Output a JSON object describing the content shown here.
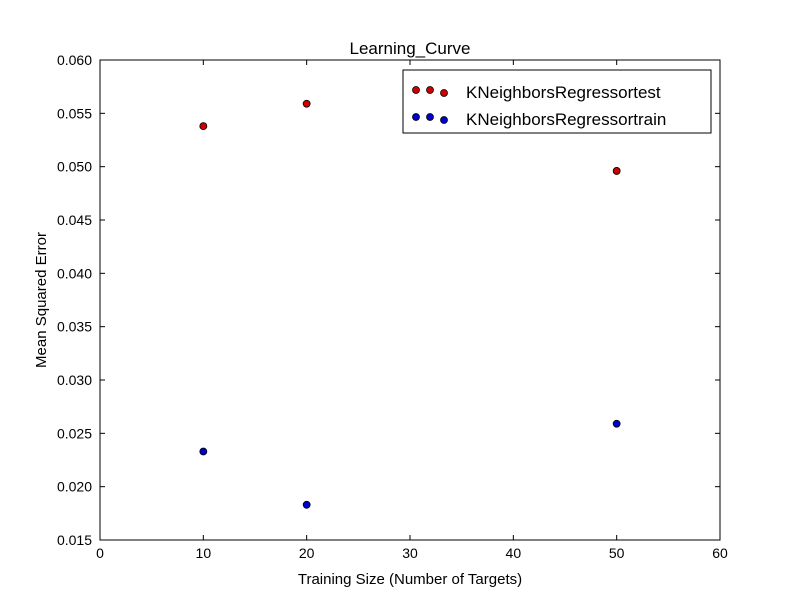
{
  "chart_data": {
    "type": "scatter",
    "title": "Learning_Curve",
    "xlabel": "Training Size (Number of Targets)",
    "ylabel": "Mean Squared Error",
    "xlim": [
      0,
      60
    ],
    "ylim": [
      0.015,
      0.06
    ],
    "xticks": [
      0,
      10,
      20,
      30,
      40,
      50,
      60
    ],
    "xtick_labels": [
      "0",
      "10",
      "20",
      "30",
      "40",
      "50",
      "60"
    ],
    "yticks": [
      0.015,
      0.02,
      0.025,
      0.03,
      0.035,
      0.04,
      0.045,
      0.05,
      0.055,
      0.06
    ],
    "ytick_labels": [
      "0.015",
      "0.020",
      "0.025",
      "0.030",
      "0.035",
      "0.040",
      "0.045",
      "0.050",
      "0.055",
      "0.060"
    ],
    "grid": false,
    "legend": "top-right",
    "series": [
      {
        "name": "KNeighborsRegressortest",
        "color": "#cc0000",
        "x": [
          10,
          20,
          50
        ],
        "y": [
          0.0538,
          0.0559,
          0.0496
        ]
      },
      {
        "name": "KNeighborsRegressortrain",
        "color": "#0000cc",
        "x": [
          10,
          20,
          50
        ],
        "y": [
          0.0233,
          0.0183,
          0.0259
        ]
      }
    ]
  }
}
